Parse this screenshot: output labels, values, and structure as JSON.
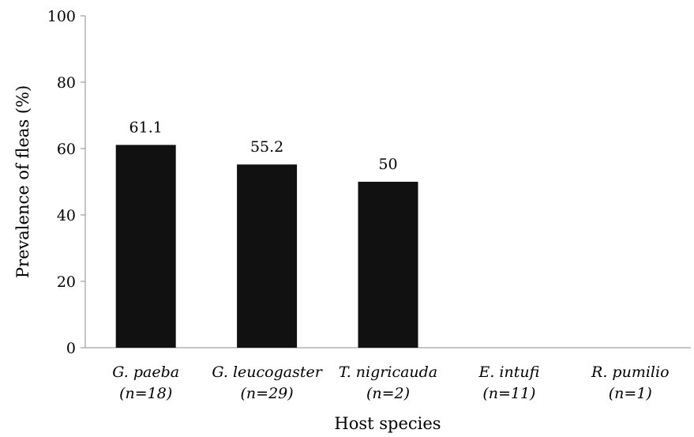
{
  "chart_data": {
    "type": "bar",
    "categories": [
      [
        "G. paeba",
        "(n=18)"
      ],
      [
        "G. leucogaster",
        "(n=29)"
      ],
      [
        "T. nigricauda",
        "(n=2)"
      ],
      [
        "E. intufi",
        "(n=11)"
      ],
      [
        "R. pumilio",
        "(n=1)"
      ]
    ],
    "values": [
      61.1,
      55.2,
      50,
      0,
      0
    ],
    "data_labels": [
      "61.1",
      "55.2",
      "50",
      "",
      ""
    ],
    "xlabel": "Host species",
    "ylabel": "Prevalence of fleas (%)",
    "ylim": [
      0,
      100
    ],
    "yticks": [
      "0",
      "20",
      "40",
      "60",
      "80",
      "100"
    ],
    "bar_color": "#111111",
    "grid": false,
    "legend": "none"
  }
}
